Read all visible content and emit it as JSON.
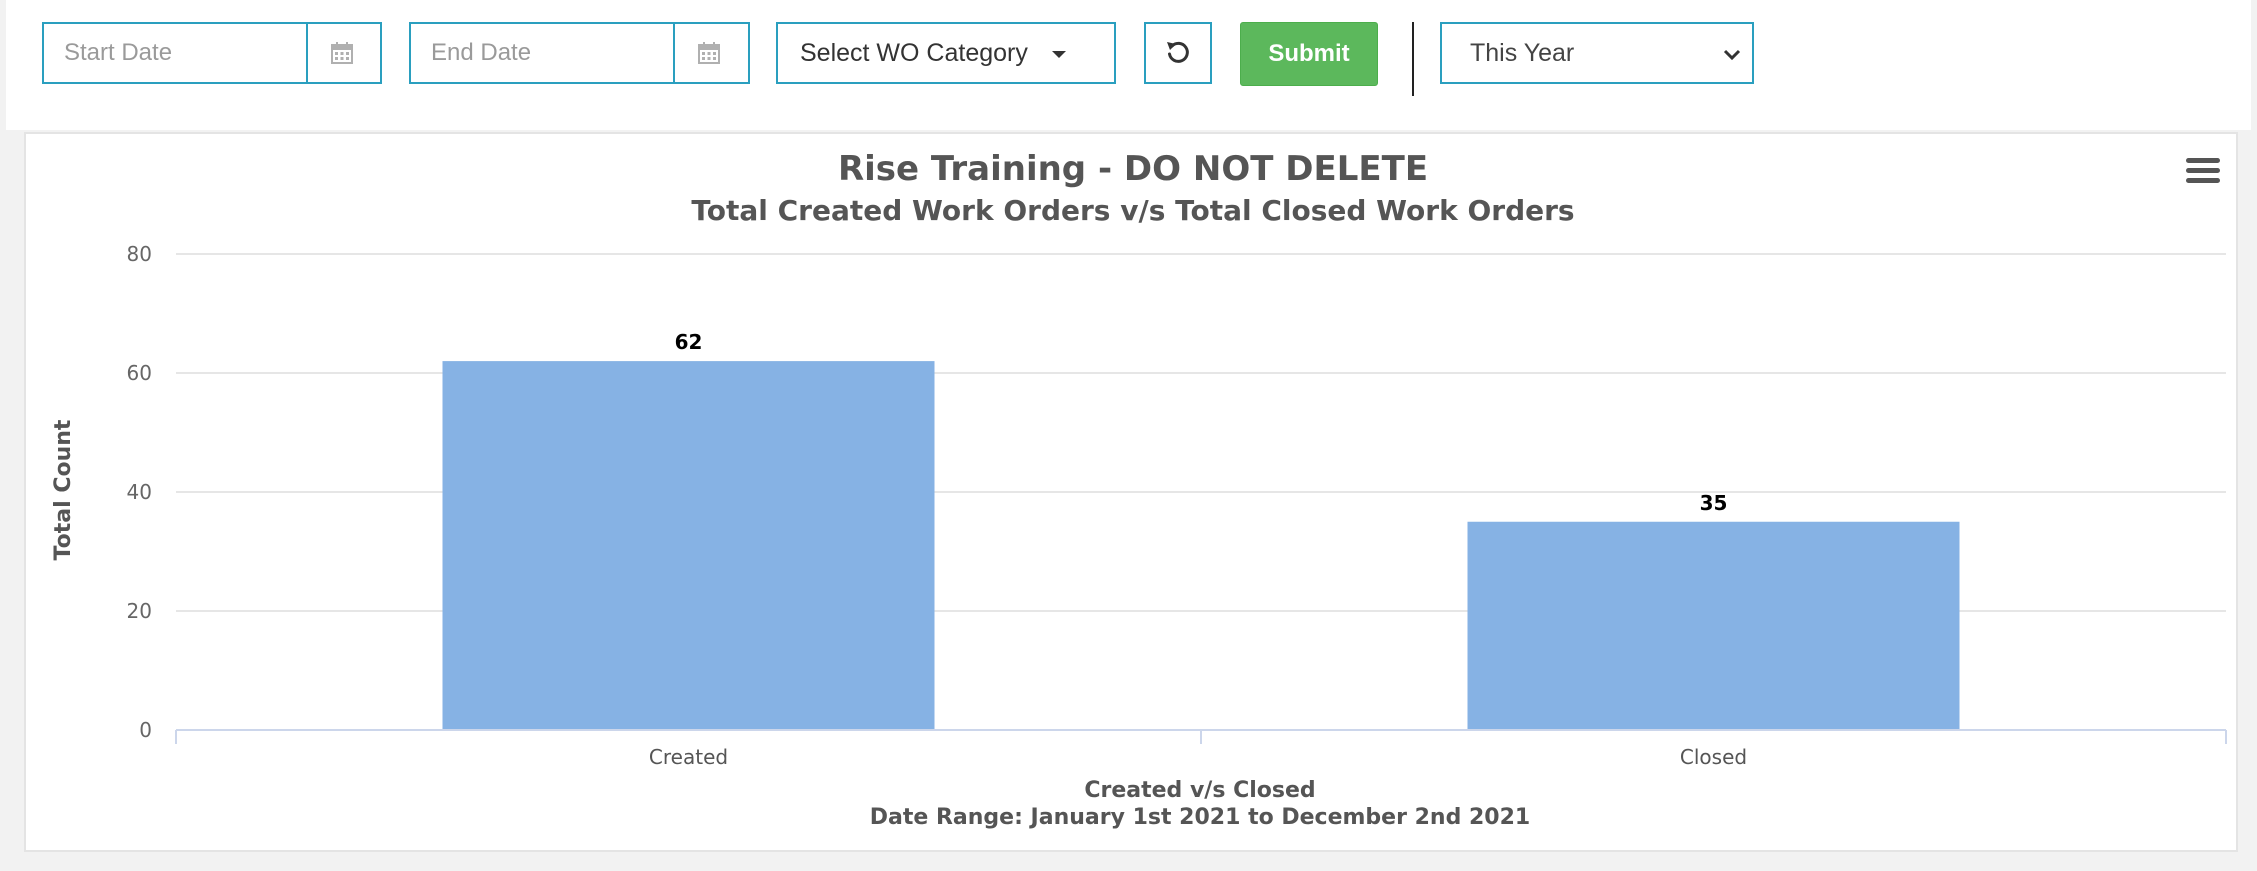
{
  "filters": {
    "start_date_placeholder": "Start Date",
    "end_date_placeholder": "End Date",
    "category_label": "Select WO Category",
    "submit_label": "Submit",
    "range_selected": "This Year"
  },
  "chart_data": {
    "type": "bar",
    "title": "Rise Training - DO NOT DELETE",
    "subtitle": "Total Created Work Orders v/s Total Closed Work Orders",
    "categories": [
      "Created",
      "Closed"
    ],
    "values": [
      62,
      35
    ],
    "data_labels": [
      "62",
      "35"
    ],
    "xlabel": "Created v/s Closed",
    "xlabel_sub": "Date Range: January 1st 2021 to December 2nd 2021",
    "ylabel": "Total Count",
    "ylim": [
      0,
      80
    ],
    "yticks": [
      0,
      20,
      40,
      60,
      80
    ],
    "ytick_labels": [
      "0",
      "20",
      "40",
      "60",
      "80"
    ],
    "grid": true,
    "bar_color": "#86b2e4"
  },
  "colors": {
    "accent_border": "#2a9fbf",
    "submit": "#5cb85c"
  },
  "icons": {
    "calendar": "calendar-icon",
    "reset": "reset-icon",
    "menu": "hamburger-menu-icon",
    "dropdown": "chevron-down-icon"
  }
}
